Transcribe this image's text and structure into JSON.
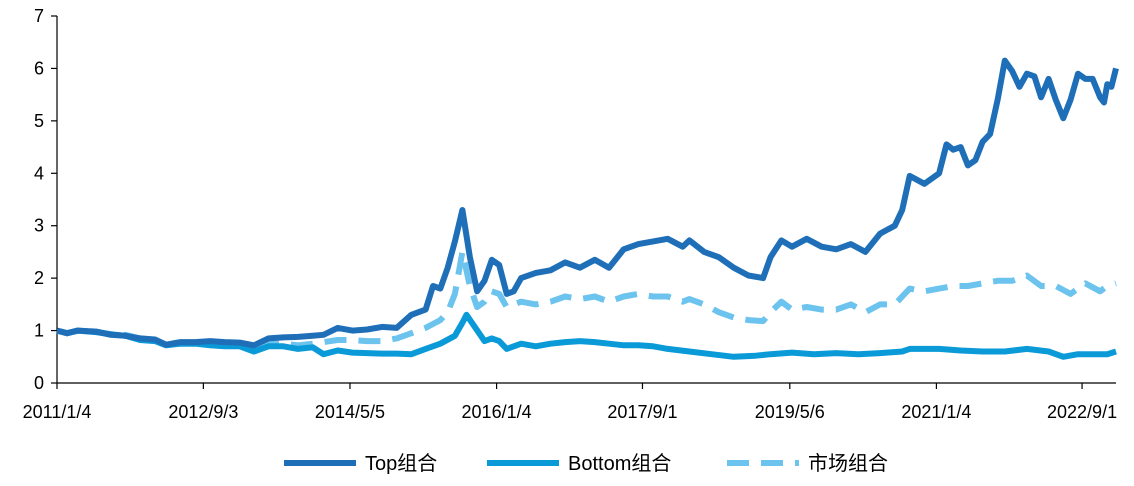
{
  "chart_data": {
    "type": "line",
    "title": "",
    "xlabel": "",
    "ylabel": "",
    "ylim": [
      0,
      7
    ],
    "yticks": [
      0,
      1,
      2,
      3,
      4,
      5,
      6,
      7
    ],
    "xlim": [
      "2011-01-04",
      "2023-01-20"
    ],
    "xtick_labels": [
      {
        "date": "2011-01-04",
        "label": "2011/1/4"
      },
      {
        "date": "2012-09-03",
        "label": "2012/9/3"
      },
      {
        "date": "2014-05-05",
        "label": "2014/5/5"
      },
      {
        "date": "2016-01-04",
        "label": "2016/1/4"
      },
      {
        "date": "2017-09-01",
        "label": "2017/9/1"
      },
      {
        "date": "2019-05-06",
        "label": "2019/5/6"
      },
      {
        "date": "2021-01-04",
        "label": "2021/1/4"
      },
      {
        "date": "2022-09-01",
        "label": "2022/9/1"
      }
    ],
    "grid": false,
    "legend_position": "bottom",
    "series": [
      {
        "name": "Top组合",
        "color": "#1f6fb8",
        "dash": "solid",
        "points": [
          [
            "2011-01-04",
            1.0
          ],
          [
            "2011-02-15",
            0.95
          ],
          [
            "2011-04-01",
            1.0
          ],
          [
            "2011-06-15",
            0.98
          ],
          [
            "2011-08-15",
            0.92
          ],
          [
            "2011-10-15",
            0.9
          ],
          [
            "2011-12-15",
            0.85
          ],
          [
            "2012-02-15",
            0.83
          ],
          [
            "2012-04-01",
            0.73
          ],
          [
            "2012-06-01",
            0.78
          ],
          [
            "2012-08-01",
            0.78
          ],
          [
            "2012-10-01",
            0.8
          ],
          [
            "2012-12-01",
            0.78
          ],
          [
            "2013-02-01",
            0.77
          ],
          [
            "2013-04-01",
            0.72
          ],
          [
            "2013-06-01",
            0.85
          ],
          [
            "2013-08-01",
            0.87
          ],
          [
            "2013-10-01",
            0.88
          ],
          [
            "2013-12-01",
            0.9
          ],
          [
            "2014-01-15",
            0.92
          ],
          [
            "2014-03-15",
            1.05
          ],
          [
            "2014-05-15",
            1.0
          ],
          [
            "2014-07-15",
            1.02
          ],
          [
            "2014-09-15",
            1.07
          ],
          [
            "2014-11-15",
            1.05
          ],
          [
            "2015-01-15",
            1.3
          ],
          [
            "2015-03-15",
            1.4
          ],
          [
            "2015-04-15",
            1.85
          ],
          [
            "2015-05-15",
            1.8
          ],
          [
            "2015-06-15",
            2.2
          ],
          [
            "2015-07-15",
            2.7
          ],
          [
            "2015-08-15",
            3.3
          ],
          [
            "2015-09-15",
            2.4
          ],
          [
            "2015-10-15",
            1.75
          ],
          [
            "2015-11-15",
            1.95
          ],
          [
            "2015-12-15",
            2.35
          ],
          [
            "2016-01-15",
            2.25
          ],
          [
            "2016-02-15",
            1.7
          ],
          [
            "2016-03-15",
            1.75
          ],
          [
            "2016-04-15",
            2.0
          ],
          [
            "2016-06-15",
            2.1
          ],
          [
            "2016-08-15",
            2.15
          ],
          [
            "2016-10-15",
            2.3
          ],
          [
            "2016-12-15",
            2.2
          ],
          [
            "2017-02-15",
            2.35
          ],
          [
            "2017-04-15",
            2.2
          ],
          [
            "2017-06-15",
            2.55
          ],
          [
            "2017-08-15",
            2.65
          ],
          [
            "2017-10-15",
            2.7
          ],
          [
            "2017-12-15",
            2.75
          ],
          [
            "2018-02-15",
            2.6
          ],
          [
            "2018-03-15",
            2.72
          ],
          [
            "2018-05-15",
            2.5
          ],
          [
            "2018-07-15",
            2.4
          ],
          [
            "2018-09-15",
            2.2
          ],
          [
            "2018-11-15",
            2.05
          ],
          [
            "2019-01-15",
            2.0
          ],
          [
            "2019-02-15",
            2.4
          ],
          [
            "2019-04-01",
            2.72
          ],
          [
            "2019-05-15",
            2.6
          ],
          [
            "2019-07-15",
            2.75
          ],
          [
            "2019-09-15",
            2.6
          ],
          [
            "2019-11-15",
            2.55
          ],
          [
            "2020-01-15",
            2.65
          ],
          [
            "2020-03-15",
            2.5
          ],
          [
            "2020-05-15",
            2.85
          ],
          [
            "2020-07-15",
            3.0
          ],
          [
            "2020-08-15",
            3.3
          ],
          [
            "2020-09-15",
            3.95
          ],
          [
            "2020-11-15",
            3.8
          ],
          [
            "2021-01-15",
            4.0
          ],
          [
            "2021-02-15",
            4.55
          ],
          [
            "2021-03-15",
            4.45
          ],
          [
            "2021-04-15",
            4.5
          ],
          [
            "2021-05-15",
            4.15
          ],
          [
            "2021-06-15",
            4.25
          ],
          [
            "2021-07-15",
            4.6
          ],
          [
            "2021-08-15",
            4.75
          ],
          [
            "2021-09-15",
            5.4
          ],
          [
            "2021-10-15",
            6.15
          ],
          [
            "2021-11-15",
            5.95
          ],
          [
            "2021-12-15",
            5.65
          ],
          [
            "2022-01-15",
            5.9
          ],
          [
            "2022-02-15",
            5.85
          ],
          [
            "2022-03-15",
            5.45
          ],
          [
            "2022-04-15",
            5.8
          ],
          [
            "2022-05-15",
            5.4
          ],
          [
            "2022-06-15",
            5.05
          ],
          [
            "2022-07-15",
            5.4
          ],
          [
            "2022-08-15",
            5.9
          ],
          [
            "2022-09-15",
            5.8
          ],
          [
            "2022-10-15",
            5.8
          ],
          [
            "2022-11-15",
            5.45
          ],
          [
            "2022-12-01",
            5.35
          ],
          [
            "2022-12-15",
            5.7
          ],
          [
            "2023-01-01",
            5.65
          ],
          [
            "2023-01-20",
            6.0
          ]
        ]
      },
      {
        "name": "Bottom组合",
        "color": "#0a9ad8",
        "dash": "solid",
        "points": [
          [
            "2011-01-04",
            1.0
          ],
          [
            "2011-02-15",
            0.95
          ],
          [
            "2011-04-01",
            1.0
          ],
          [
            "2011-06-15",
            0.97
          ],
          [
            "2011-08-15",
            0.93
          ],
          [
            "2011-10-15",
            0.9
          ],
          [
            "2011-12-15",
            0.82
          ],
          [
            "2012-02-15",
            0.8
          ],
          [
            "2012-04-01",
            0.72
          ],
          [
            "2012-06-01",
            0.75
          ],
          [
            "2012-08-01",
            0.75
          ],
          [
            "2012-10-01",
            0.72
          ],
          [
            "2012-12-01",
            0.7
          ],
          [
            "2013-02-01",
            0.7
          ],
          [
            "2013-04-01",
            0.6
          ],
          [
            "2013-06-01",
            0.7
          ],
          [
            "2013-08-01",
            0.7
          ],
          [
            "2013-10-01",
            0.65
          ],
          [
            "2013-12-01",
            0.68
          ],
          [
            "2014-01-15",
            0.55
          ],
          [
            "2014-03-15",
            0.62
          ],
          [
            "2014-05-15",
            0.58
          ],
          [
            "2014-07-15",
            0.57
          ],
          [
            "2014-09-15",
            0.56
          ],
          [
            "2014-11-15",
            0.56
          ],
          [
            "2015-01-15",
            0.55
          ],
          [
            "2015-03-15",
            0.65
          ],
          [
            "2015-05-15",
            0.75
          ],
          [
            "2015-07-15",
            0.9
          ],
          [
            "2015-08-15",
            1.15
          ],
          [
            "2015-09-01",
            1.3
          ],
          [
            "2015-10-01",
            1.1
          ],
          [
            "2015-11-15",
            0.8
          ],
          [
            "2015-12-15",
            0.85
          ],
          [
            "2016-01-15",
            0.8
          ],
          [
            "2016-02-15",
            0.65
          ],
          [
            "2016-04-15",
            0.75
          ],
          [
            "2016-06-15",
            0.7
          ],
          [
            "2016-08-15",
            0.75
          ],
          [
            "2016-10-15",
            0.78
          ],
          [
            "2016-12-15",
            0.8
          ],
          [
            "2017-02-15",
            0.78
          ],
          [
            "2017-04-15",
            0.75
          ],
          [
            "2017-06-15",
            0.72
          ],
          [
            "2017-08-15",
            0.72
          ],
          [
            "2017-10-15",
            0.7
          ],
          [
            "2017-12-15",
            0.65
          ],
          [
            "2018-03-15",
            0.6
          ],
          [
            "2018-06-15",
            0.55
          ],
          [
            "2018-09-15",
            0.5
          ],
          [
            "2018-12-15",
            0.52
          ],
          [
            "2019-02-15",
            0.55
          ],
          [
            "2019-05-15",
            0.58
          ],
          [
            "2019-08-15",
            0.55
          ],
          [
            "2019-11-15",
            0.57
          ],
          [
            "2020-02-15",
            0.55
          ],
          [
            "2020-05-15",
            0.57
          ],
          [
            "2020-08-15",
            0.6
          ],
          [
            "2020-09-15",
            0.65
          ],
          [
            "2020-11-15",
            0.65
          ],
          [
            "2021-01-15",
            0.65
          ],
          [
            "2021-04-15",
            0.62
          ],
          [
            "2021-07-15",
            0.6
          ],
          [
            "2021-10-15",
            0.6
          ],
          [
            "2022-01-15",
            0.65
          ],
          [
            "2022-04-15",
            0.6
          ],
          [
            "2022-06-15",
            0.5
          ],
          [
            "2022-08-15",
            0.55
          ],
          [
            "2022-10-15",
            0.55
          ],
          [
            "2022-12-15",
            0.55
          ],
          [
            "2023-01-20",
            0.6
          ]
        ]
      },
      {
        "name": "市场组合",
        "color": "#6cc3ee",
        "dash": "dashed",
        "points": [
          [
            "2011-01-04",
            1.0
          ],
          [
            "2011-02-15",
            0.95
          ],
          [
            "2011-04-01",
            1.0
          ],
          [
            "2011-06-15",
            0.98
          ],
          [
            "2011-08-15",
            0.93
          ],
          [
            "2011-10-15",
            0.92
          ],
          [
            "2011-12-15",
            0.85
          ],
          [
            "2012-02-15",
            0.82
          ],
          [
            "2012-04-01",
            0.73
          ],
          [
            "2012-06-01",
            0.78
          ],
          [
            "2012-08-01",
            0.77
          ],
          [
            "2012-10-01",
            0.75
          ],
          [
            "2012-12-01",
            0.72
          ],
          [
            "2013-02-01",
            0.72
          ],
          [
            "2013-04-01",
            0.65
          ],
          [
            "2013-06-01",
            0.75
          ],
          [
            "2013-08-01",
            0.75
          ],
          [
            "2013-10-01",
            0.72
          ],
          [
            "2013-12-01",
            0.75
          ],
          [
            "2014-01-15",
            0.78
          ],
          [
            "2014-03-15",
            0.82
          ],
          [
            "2014-05-15",
            0.82
          ],
          [
            "2014-07-15",
            0.8
          ],
          [
            "2014-09-15",
            0.8
          ],
          [
            "2014-11-15",
            0.85
          ],
          [
            "2015-01-15",
            0.95
          ],
          [
            "2015-03-15",
            1.05
          ],
          [
            "2015-05-15",
            1.2
          ],
          [
            "2015-06-15",
            1.35
          ],
          [
            "2015-07-15",
            1.7
          ],
          [
            "2015-08-15",
            2.5
          ],
          [
            "2015-09-15",
            1.85
          ],
          [
            "2015-10-15",
            1.45
          ],
          [
            "2015-11-15",
            1.55
          ],
          [
            "2015-12-15",
            1.75
          ],
          [
            "2016-01-15",
            1.7
          ],
          [
            "2016-02-15",
            1.45
          ],
          [
            "2016-04-15",
            1.55
          ],
          [
            "2016-06-15",
            1.5
          ],
          [
            "2016-08-15",
            1.55
          ],
          [
            "2016-10-15",
            1.65
          ],
          [
            "2016-12-15",
            1.6
          ],
          [
            "2017-02-15",
            1.65
          ],
          [
            "2017-04-15",
            1.55
          ],
          [
            "2017-06-15",
            1.65
          ],
          [
            "2017-08-15",
            1.7
          ],
          [
            "2017-10-15",
            1.65
          ],
          [
            "2017-12-15",
            1.65
          ],
          [
            "2018-02-15",
            1.55
          ],
          [
            "2018-03-15",
            1.6
          ],
          [
            "2018-05-15",
            1.5
          ],
          [
            "2018-07-15",
            1.35
          ],
          [
            "2018-09-15",
            1.25
          ],
          [
            "2018-11-15",
            1.2
          ],
          [
            "2019-01-15",
            1.18
          ],
          [
            "2019-02-15",
            1.35
          ],
          [
            "2019-04-01",
            1.55
          ],
          [
            "2019-05-15",
            1.4
          ],
          [
            "2019-07-15",
            1.45
          ],
          [
            "2019-09-15",
            1.4
          ],
          [
            "2019-11-15",
            1.4
          ],
          [
            "2020-01-15",
            1.5
          ],
          [
            "2020-03-15",
            1.35
          ],
          [
            "2020-05-15",
            1.5
          ],
          [
            "2020-07-15",
            1.5
          ],
          [
            "2020-09-15",
            1.8
          ],
          [
            "2020-11-15",
            1.75
          ],
          [
            "2021-01-15",
            1.8
          ],
          [
            "2021-03-15",
            1.85
          ],
          [
            "2021-05-15",
            1.85
          ],
          [
            "2021-07-15",
            1.9
          ],
          [
            "2021-09-15",
            1.95
          ],
          [
            "2021-11-15",
            1.95
          ],
          [
            "2022-01-15",
            2.05
          ],
          [
            "2022-03-15",
            1.85
          ],
          [
            "2022-05-15",
            1.85
          ],
          [
            "2022-07-15",
            1.7
          ],
          [
            "2022-09-15",
            1.9
          ],
          [
            "2022-11-15",
            1.75
          ],
          [
            "2022-12-15",
            1.85
          ],
          [
            "2023-01-20",
            1.9
          ]
        ]
      }
    ]
  }
}
